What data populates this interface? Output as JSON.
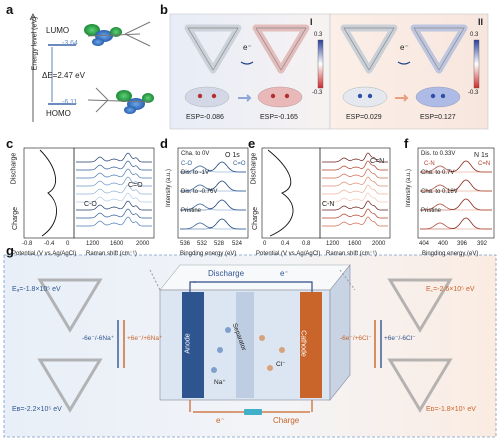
{
  "panel_letters": [
    "a",
    "b",
    "c",
    "d",
    "e",
    "f",
    "g"
  ],
  "a": {
    "ylabel": "Energy level (eV)",
    "lumo_label": "LUMO",
    "lumo_value": "-3.64",
    "homo_label": "HOMO",
    "homo_value": "-6.11",
    "gap_label": "ΔE=2.47 eV"
  },
  "b": {
    "roman_1": "I",
    "roman_2": "II",
    "electron": "e⁻",
    "esp": [
      "ESP=-0.086",
      "ESP=-0.165",
      "ESP=0.029",
      "ESP=0.127"
    ],
    "scale_max": "0.3",
    "scale_min": "-0.3"
  },
  "c": {
    "discharge": "Discharge",
    "charge": "Charge",
    "xlabel_left": "Potential (V vs.Ag/AgCl)",
    "xticks_left": [
      "-0.8",
      "-0.4",
      "0"
    ],
    "xlabel_right": "Raman shift (cm⁻¹)",
    "xticks_right": [
      "1200",
      "1600",
      "2000"
    ],
    "peak1": "C=O",
    "peak2": "C-O"
  },
  "d": {
    "title": "O 1s",
    "ylabel": "Intensity (a.u.)",
    "xlabel": "Bingding energy (eV)",
    "xticks": [
      "536",
      "532",
      "528",
      "524"
    ],
    "traces": [
      "Cha. to 0V",
      "Dis. to -1V",
      "Dis. to -0.76V",
      "Pristine"
    ],
    "peak_left": "C-O",
    "peak_right": "C=O"
  },
  "e": {
    "discharge": "Discharge",
    "charge": "Charge",
    "xlabel_left": "Potential (V vs.Ag/AgCl)",
    "xticks_left": [
      "0",
      "0.4",
      "0.8"
    ],
    "xlabel_right": "Raman shift (cm⁻¹)",
    "xticks_right": [
      "1200",
      "1600",
      "2000"
    ],
    "peak1": "C=N",
    "peak2": "C-N"
  },
  "f": {
    "title": "N 1s",
    "ylabel": "Intensity (a.u.)",
    "xlabel": "Bingding energy (eV)",
    "xticks": [
      "404",
      "400",
      "396",
      "392"
    ],
    "traces": [
      "Dis. to 0.33V",
      "Cha. to 0.7V",
      "Cha. to 0.18V",
      "Pristine"
    ],
    "peak_left": "C-N",
    "peak_right": "C=N"
  },
  "g": {
    "ea": "Eₐ=-1.8×10⁵ eV",
    "eb": "Eв=-2.2×10⁵ eV",
    "ec": "E꜀=-2.6×10⁵ eV",
    "ed": "Eᴅ=-1.8×10⁵ eV",
    "anode_reaction": "-6e⁻/-6Na⁺",
    "anode_reaction2": "+6e⁻/+6Na⁺",
    "cathode_reaction": "-6e⁻/+6Cl⁻",
    "cathode_reaction2": "+6e⁻/-6Cl⁻",
    "discharge": "Discharge",
    "charge": "Charge",
    "electron": "e⁻",
    "anode": "Anode",
    "cathode": "Cathode",
    "separator": "Separator",
    "na_ion": "Na⁺",
    "cl_ion": "Cl⁻"
  },
  "colors": {
    "lumo_orb": "#2aa64a",
    "esp_red": "#d03030",
    "esp_blue": "#3050b0",
    "raman_blue": "#2f5f9a",
    "raman_red": "#b2402a",
    "anode": "#2f5590",
    "cathode": "#c9642a",
    "panel_g_bg": "#eef3fa"
  }
}
